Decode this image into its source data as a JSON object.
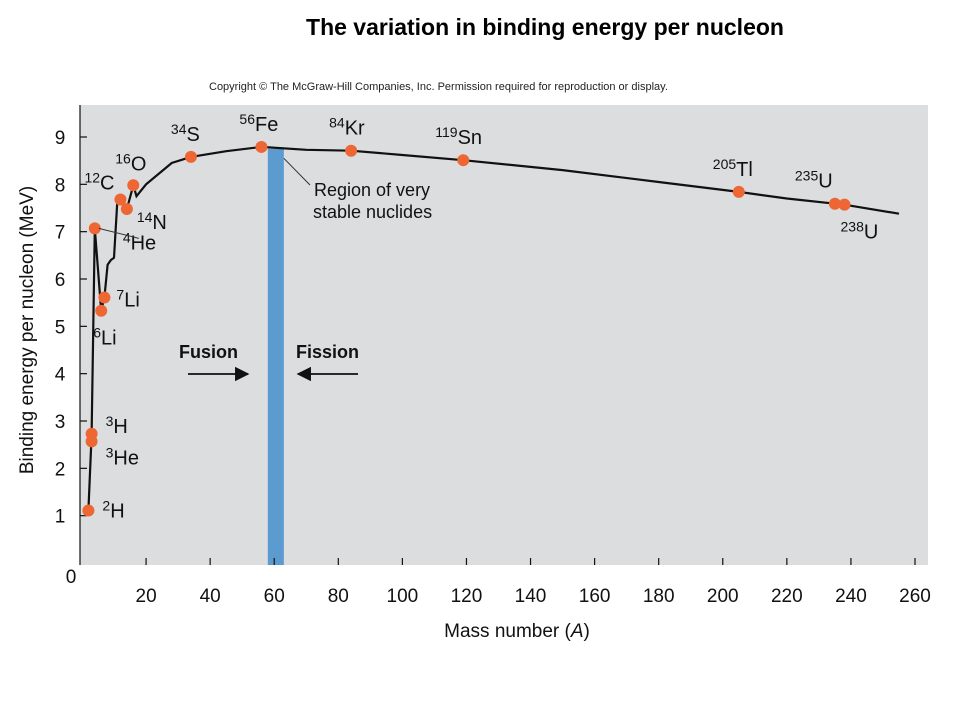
{
  "page": {
    "title": "The variation in binding energy per nucleon",
    "copyright": "Copyright © The McGraw-Hill Companies, Inc. Permission required for reproduction or display."
  },
  "chart_data": {
    "type": "line",
    "title": "The variation in binding energy per nucleon",
    "xlabel_text": "Mass number (",
    "xlabel_italic": "A",
    "xlabel_close": ")",
    "ylabel": "Binding energy per nucleon (MeV)",
    "xlim": [
      0,
      260
    ],
    "ylim": [
      0,
      9.5
    ],
    "xticks": [
      20,
      40,
      60,
      80,
      100,
      120,
      140,
      160,
      180,
      200,
      220,
      240,
      260
    ],
    "yticks": [
      1,
      2,
      3,
      4,
      5,
      6,
      7,
      8,
      9
    ],
    "origin_label": "0",
    "grid": false,
    "background": "#dcdddf",
    "line_color": "#111111",
    "point_color": "#ee6633",
    "band_color": "#5b9bd0",
    "curve": [
      [
        2,
        1.11
      ],
      [
        3,
        2.7
      ],
      [
        4,
        7.07
      ],
      [
        6,
        5.33
      ],
      [
        7,
        5.61
      ],
      [
        8,
        6.3
      ],
      [
        9,
        6.4
      ],
      [
        10,
        6.45
      ],
      [
        11,
        7.6
      ],
      [
        12,
        7.68
      ],
      [
        14,
        7.48
      ],
      [
        16,
        7.98
      ],
      [
        17,
        7.75
      ],
      [
        20,
        8.0
      ],
      [
        28,
        8.45
      ],
      [
        34,
        8.58
      ],
      [
        45,
        8.7
      ],
      [
        56,
        8.79
      ],
      [
        70,
        8.73
      ],
      [
        84,
        8.71
      ],
      [
        100,
        8.62
      ],
      [
        119,
        8.51
      ],
      [
        150,
        8.3
      ],
      [
        180,
        8.05
      ],
      [
        205,
        7.84
      ],
      [
        220,
        7.7
      ],
      [
        235,
        7.59
      ],
      [
        238,
        7.57
      ],
      [
        255,
        7.38
      ]
    ],
    "points": [
      {
        "label": "H",
        "mass": "2",
        "x": 2,
        "y": 1.11
      },
      {
        "label": "H",
        "mass": "3",
        "x": 3,
        "y": 2.73
      },
      {
        "label": "He",
        "mass": "3",
        "x": 3,
        "y": 2.57
      },
      {
        "label": "He",
        "mass": "4",
        "x": 4,
        "y": 7.07
      },
      {
        "label": "Li",
        "mass": "6",
        "x": 6,
        "y": 5.33
      },
      {
        "label": "Li",
        "mass": "7",
        "x": 7,
        "y": 5.61
      },
      {
        "label": "C",
        "mass": "12",
        "x": 12,
        "y": 7.68
      },
      {
        "label": "N",
        "mass": "14",
        "x": 14,
        "y": 7.48
      },
      {
        "label": "O",
        "mass": "16",
        "x": 16,
        "y": 7.98
      },
      {
        "label": "S",
        "mass": "34",
        "x": 34,
        "y": 8.58
      },
      {
        "label": "Fe",
        "mass": "56",
        "x": 56,
        "y": 8.79
      },
      {
        "label": "Kr",
        "mass": "84",
        "x": 84,
        "y": 8.71
      },
      {
        "label": "Sn",
        "mass": "119",
        "x": 119,
        "y": 8.51
      },
      {
        "label": "Tl",
        "mass": "205",
        "x": 205,
        "y": 7.84
      },
      {
        "label": "U",
        "mass": "235",
        "x": 235,
        "y": 7.59
      },
      {
        "label": "U",
        "mass": "238",
        "x": 238,
        "y": 7.57
      }
    ],
    "stable_band": {
      "x_from": 58,
      "x_to": 63,
      "label_line1": "Region of very",
      "label_line2": "stable nuclides"
    },
    "annotations": {
      "fusion": "Fusion",
      "fission": "Fission"
    }
  }
}
